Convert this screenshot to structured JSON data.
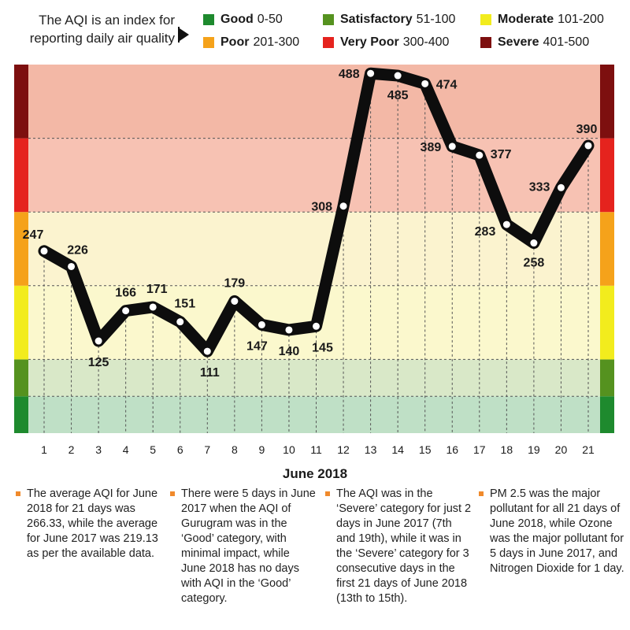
{
  "header": {
    "intro": "The AQI is an index for reporting daily air quality",
    "arrow_icon": "play-arrow-icon"
  },
  "legend": [
    {
      "name": "Good",
      "range": "0-50",
      "color": "#1e8a2e"
    },
    {
      "name": "Satisfactory",
      "range": "51-100",
      "color": "#55921f"
    },
    {
      "name": "Moderate",
      "range": "101-200",
      "color": "#f2ec1d"
    },
    {
      "name": "Poor",
      "range": "201-300",
      "color": "#f5a21a"
    },
    {
      "name": "Very Poor",
      "range": "300-400",
      "color": "#e5231e"
    },
    {
      "name": "Severe",
      "range": "401-500",
      "color": "#7d0f0f"
    }
  ],
  "chart_data": {
    "type": "line",
    "title": "",
    "xlabel": "June 2018",
    "ylabel": "",
    "ylim": [
      0,
      500
    ],
    "grid": "dashed horizontal lines at 50, 100, 200, 300, 400",
    "x": [
      1,
      2,
      3,
      4,
      5,
      6,
      7,
      8,
      9,
      10,
      11,
      12,
      13,
      14,
      15,
      16,
      17,
      18,
      19,
      20,
      21
    ],
    "values": [
      247,
      226,
      125,
      166,
      171,
      151,
      111,
      179,
      147,
      140,
      145,
      308,
      488,
      485,
      474,
      389,
      377,
      283,
      258,
      333,
      390
    ],
    "bands": [
      {
        "name": "Good",
        "from": 0,
        "to": 50,
        "fill": "#bfe0c6",
        "side": "#1e8a2e"
      },
      {
        "name": "Satisfactory",
        "from": 50,
        "to": 100,
        "fill": "#d9e8c8",
        "side": "#55921f"
      },
      {
        "name": "Moderate",
        "from": 100,
        "to": 200,
        "fill": "#fbf8cd",
        "side": "#f2ec1d"
      },
      {
        "name": "Poor",
        "from": 200,
        "to": 300,
        "fill": "#fbf3cf",
        "side": "#f5a21a"
      },
      {
        "name": "Very Poor",
        "from": 300,
        "to": 400,
        "fill": "#f7c2b3",
        "side": "#e5231e"
      },
      {
        "name": "Severe",
        "from": 400,
        "to": 500,
        "fill": "#f3b8a6",
        "side": "#7d0f0f"
      }
    ],
    "line_color": "#0d0d0d"
  },
  "notes": [
    "The average AQI for June 2018 for 21 days was 266.33, while the average for June 2017 was 219.13 as per the available data.",
    "There were 5 days in June 2017 when the AQI of Gurugram was in the ‘Good’ category, with minimal impact, while June 2018 has no days with AQI in the ‘Good’ category.",
    "The AQI was in the ‘Severe’ category for just 2 days in June 2017 (7th and 19th), while it was in the ‘Severe’ category for 3 consecutive days in the first 21 days of June 2018 (13th to 15th).",
    "PM 2.5 was the major pollutant for all 21 days of June 2018, while Ozone was the major pollutant for 5 days in June 2017, and Nitrogen Dioxide for 1 day."
  ]
}
